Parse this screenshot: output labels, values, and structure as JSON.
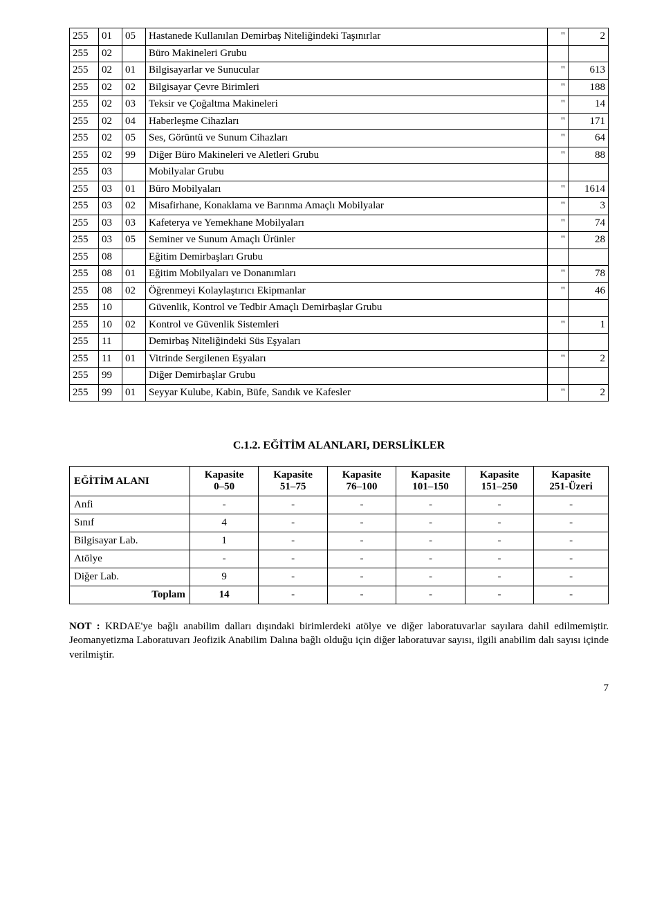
{
  "table1": {
    "rows": [
      {
        "c1": "255",
        "c2": "01",
        "c3": "05",
        "desc": "Hastanede Kullanılan Demirbaş Niteliğindeki Taşınırlar",
        "q": "\"",
        "n": "2"
      },
      {
        "c1": "255",
        "c2": "02",
        "c3": "",
        "desc": "Büro Makineleri Grubu",
        "q": "",
        "n": ""
      },
      {
        "c1": "255",
        "c2": "02",
        "c3": "01",
        "desc": "Bilgisayarlar ve Sunucular",
        "q": "\"",
        "n": "613"
      },
      {
        "c1": "255",
        "c2": "02",
        "c3": "02",
        "desc": "Bilgisayar Çevre Birimleri",
        "q": "\"",
        "n": "188"
      },
      {
        "c1": "255",
        "c2": "02",
        "c3": "03",
        "desc": "Teksir ve Çoğaltma Makineleri",
        "q": "\"",
        "n": "14"
      },
      {
        "c1": "255",
        "c2": "02",
        "c3": "04",
        "desc": "Haberleşme Cihazları",
        "q": "\"",
        "n": "171"
      },
      {
        "c1": "255",
        "c2": "02",
        "c3": "05",
        "desc": "Ses, Görüntü ve Sunum Cihazları",
        "q": "\"",
        "n": "64"
      },
      {
        "c1": "255",
        "c2": "02",
        "c3": "99",
        "desc": "Diğer Büro Makineleri ve Aletleri Grubu",
        "q": "\"",
        "n": "88"
      },
      {
        "c1": "255",
        "c2": "03",
        "c3": "",
        "desc": "Mobilyalar Grubu",
        "q": "",
        "n": ""
      },
      {
        "c1": "255",
        "c2": "03",
        "c3": "01",
        "desc": "Büro Mobilyaları",
        "q": "\"",
        "n": "1614"
      },
      {
        "c1": "255",
        "c2": "03",
        "c3": "02",
        "desc": "Misafirhane, Konaklama ve Barınma Amaçlı Mobilyalar",
        "q": "\"",
        "n": "3"
      },
      {
        "c1": "255",
        "c2": "03",
        "c3": "03",
        "desc": "Kafeterya ve Yemekhane Mobilyaları",
        "q": "\"",
        "n": "74"
      },
      {
        "c1": "255",
        "c2": "03",
        "c3": "05",
        "desc": "Seminer ve Sunum Amaçlı Ürünler",
        "q": "\"",
        "n": "28"
      },
      {
        "c1": "255",
        "c2": "08",
        "c3": "",
        "desc": "Eğitim Demirbaşları Grubu",
        "q": "",
        "n": ""
      },
      {
        "c1": "255",
        "c2": "08",
        "c3": "01",
        "desc": "Eğitim Mobilyaları ve Donanımları",
        "q": "\"",
        "n": "78"
      },
      {
        "c1": "255",
        "c2": "08",
        "c3": "02",
        "desc": "Öğrenmeyi Kolaylaştırıcı Ekipmanlar",
        "q": "\"",
        "n": "46"
      },
      {
        "c1": "255",
        "c2": "10",
        "c3": "",
        "desc": "Güvenlik, Kontrol ve Tedbir Amaçlı Demirbaşlar Grubu",
        "q": "",
        "n": ""
      },
      {
        "c1": "255",
        "c2": "10",
        "c3": "02",
        "desc": "Kontrol ve Güvenlik Sistemleri",
        "q": "\"",
        "n": "1"
      },
      {
        "c1": "255",
        "c2": "11",
        "c3": "",
        "desc": "Demirbaş Niteliğindeki Süs Eşyaları",
        "q": "",
        "n": ""
      },
      {
        "c1": "255",
        "c2": "11",
        "c3": "01",
        "desc": "Vitrinde Sergilenen Eşyaları",
        "q": "\"",
        "n": "2"
      },
      {
        "c1": "255",
        "c2": "99",
        "c3": "",
        "desc": "Diğer Demirbaşlar Grubu",
        "q": "",
        "n": ""
      },
      {
        "c1": "255",
        "c2": "99",
        "c3": "01",
        "desc": "Seyyar Kulube, Kabin,  Büfe, Sandık ve Kafesler",
        "q": "\"",
        "n": "2"
      }
    ]
  },
  "section_heading": "C.1.2. EĞİTİM ALANLARI, DERSLİKLER",
  "table2": {
    "header": {
      "rowhead": "EĞİTİM ALANI",
      "cols": [
        {
          "l1": "Kapasite",
          "l2": "0–50"
        },
        {
          "l1": "Kapasite",
          "l2": "51–75"
        },
        {
          "l1": "Kapasite",
          "l2": "76–100"
        },
        {
          "l1": "Kapasite",
          "l2": "101–150"
        },
        {
          "l1": "Kapasite",
          "l2": "151–250"
        },
        {
          "l1": "Kapasite",
          "l2": "251-Üzeri"
        }
      ]
    },
    "rows": [
      {
        "label": "Anfi",
        "v": [
          "-",
          "-",
          "-",
          "-",
          "-",
          "-"
        ]
      },
      {
        "label": "Sınıf",
        "v": [
          "4",
          "-",
          "-",
          "-",
          "-",
          "-"
        ]
      },
      {
        "label": "Bilgisayar Lab.",
        "v": [
          "1",
          "-",
          "-",
          "-",
          "-",
          "-"
        ]
      },
      {
        "label": "Atölye",
        "v": [
          "-",
          "-",
          "-",
          "-",
          "-",
          "-"
        ]
      },
      {
        "label": "Diğer Lab.",
        "v": [
          "9",
          "-",
          "-",
          "-",
          "-",
          "-"
        ]
      }
    ],
    "total": {
      "label": "Toplam",
      "v": [
        "14",
        "-",
        "-",
        "-",
        "-",
        "-"
      ]
    }
  },
  "note": {
    "lead": "NOT : ",
    "text": "KRDAE'ye bağlı anabilim dalları dışındaki birimlerdeki atölye ve diğer laboratuvarlar sayılara dahil edilmemiştir. Jeomanyetizma Laboratuvarı Jeofizik Anabilim Dalına bağlı olduğu için diğer laboratuvar sayısı, ilgili anabilim dalı sayısı içinde verilmiştir."
  },
  "page_number": "7"
}
